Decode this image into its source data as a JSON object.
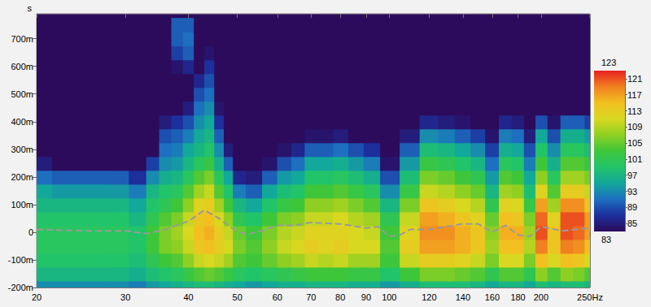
{
  "chart_data": {
    "type": "heatmap",
    "y_label": "s",
    "log": "x",
    "grid": true,
    "xlim": [
      20,
      250
    ],
    "xticks": [
      20,
      30,
      40,
      50,
      60,
      70,
      80,
      90,
      100,
      120,
      140,
      160,
      180,
      200,
      {
        "value": 250,
        "label": "250Hz"
      }
    ],
    "ylim": [
      -200,
      790
    ],
    "yticks": [
      {
        "value": -200,
        "label": "-200m"
      },
      {
        "value": -100,
        "label": "-100m"
      },
      0,
      {
        "value": 100,
        "label": "100m"
      },
      {
        "value": 200,
        "label": "200m"
      },
      {
        "value": 300,
        "label": "300m"
      },
      {
        "value": 400,
        "label": "400m"
      },
      {
        "value": 500,
        "label": "500m"
      },
      {
        "value": 600,
        "label": "600m"
      },
      {
        "value": 700,
        "label": "700m"
      }
    ],
    "colorbar": {
      "range": [
        83,
        123
      ],
      "ticks": [
        85,
        89,
        93,
        97,
        101,
        105,
        109,
        113,
        117,
        121
      ]
    },
    "x": [
      20,
      23,
      26,
      29,
      32,
      34,
      36,
      38,
      40,
      42,
      44,
      46,
      48,
      50,
      54,
      58,
      62,
      66,
      70,
      75,
      80,
      86,
      92,
      100,
      110,
      120,
      130,
      140,
      150,
      160,
      170,
      180,
      190,
      200,
      212,
      225,
      238,
      250
    ],
    "y": [
      -200,
      -150,
      -100,
      -50,
      0,
      50,
      100,
      150,
      200,
      250,
      300,
      350,
      400,
      450,
      500,
      550,
      600,
      650,
      700,
      750
    ],
    "cells": [
      [
        93,
        97,
        99,
        100,
        100,
        99,
        97,
        95,
        91,
        85,
        83,
        83,
        83,
        83,
        83,
        83,
        83,
        83,
        83,
        83
      ],
      [
        93,
        97,
        99,
        100,
        100,
        99,
        97,
        94,
        90,
        83,
        83,
        83,
        83,
        83,
        83,
        83,
        83,
        83,
        83,
        83
      ],
      [
        93,
        97,
        99,
        100,
        100,
        99,
        97,
        94,
        90,
        83,
        83,
        83,
        83,
        83,
        83,
        83,
        83,
        83,
        83,
        83
      ],
      [
        93,
        97,
        99,
        100,
        100,
        99,
        97,
        94,
        90,
        83,
        83,
        83,
        83,
        83,
        83,
        83,
        83,
        83,
        83,
        83
      ],
      [
        92,
        96,
        98,
        99,
        99,
        97,
        95,
        92,
        87,
        83,
        83,
        83,
        83,
        83,
        83,
        83,
        83,
        83,
        83,
        83
      ],
      [
        94,
        98,
        101,
        103,
        103,
        101,
        99,
        97,
        93,
        88,
        83,
        83,
        83,
        83,
        83,
        83,
        83,
        83,
        83,
        83
      ],
      [
        95,
        99,
        103,
        106,
        106,
        104,
        101,
        99,
        96,
        93,
        91,
        89,
        85,
        83,
        83,
        83,
        83,
        83,
        83,
        83
      ],
      [
        96,
        100,
        104,
        107,
        108,
        106,
        103,
        100,
        97,
        94,
        92,
        90,
        87,
        83,
        83,
        83,
        84,
        88,
        90,
        90
      ],
      [
        97,
        102,
        107,
        110,
        111,
        110,
        107,
        104,
        100,
        97,
        95,
        92,
        89,
        85,
        83,
        83,
        86,
        90,
        91,
        90
      ],
      [
        98,
        104,
        110,
        114,
        115,
        114,
        112,
        108,
        104,
        100,
        97,
        95,
        93,
        91,
        89,
        86,
        83,
        83,
        83,
        83
      ],
      [
        98,
        105,
        111,
        115,
        116,
        115,
        113,
        110,
        106,
        102,
        99,
        97,
        95,
        93,
        91,
        89,
        87,
        84,
        83,
        83
      ],
      [
        97,
        104,
        110,
        113,
        113,
        111,
        108,
        104,
        100,
        96,
        93,
        90,
        87,
        84,
        83,
        83,
        83,
        83,
        83,
        83
      ],
      [
        96,
        102,
        108,
        111,
        110,
        107,
        103,
        99,
        95,
        90,
        85,
        83,
        83,
        83,
        83,
        83,
        83,
        83,
        83,
        83
      ],
      [
        95,
        100,
        104,
        106,
        105,
        101,
        97,
        92,
        86,
        83,
        83,
        83,
        83,
        83,
        83,
        83,
        83,
        83,
        83,
        83
      ],
      [
        94,
        99,
        103,
        104,
        103,
        99,
        95,
        90,
        85,
        83,
        83,
        83,
        83,
        83,
        83,
        83,
        83,
        83,
        83,
        83
      ],
      [
        95,
        100,
        105,
        107,
        106,
        103,
        99,
        95,
        90,
        84,
        83,
        83,
        83,
        83,
        83,
        83,
        83,
        83,
        83,
        83
      ],
      [
        96,
        101,
        107,
        110,
        109,
        106,
        102,
        98,
        94,
        89,
        84,
        83,
        83,
        83,
        83,
        83,
        83,
        83,
        83,
        83
      ],
      [
        96,
        102,
        108,
        111,
        110,
        107,
        103,
        99,
        95,
        91,
        86,
        83,
        83,
        83,
        83,
        83,
        83,
        83,
        83,
        83
      ],
      [
        97,
        103,
        110,
        113,
        112,
        110,
        107,
        103,
        99,
        95,
        90,
        84,
        83,
        83,
        83,
        83,
        83,
        83,
        83,
        83
      ],
      [
        97,
        103,
        109,
        112,
        112,
        110,
        107,
        103,
        99,
        95,
        90,
        84,
        83,
        83,
        83,
        83,
        83,
        83,
        83,
        83
      ],
      [
        97,
        103,
        110,
        113,
        112,
        111,
        108,
        104,
        100,
        96,
        91,
        85,
        83,
        83,
        83,
        83,
        83,
        83,
        83,
        83
      ],
      [
        96,
        102,
        108,
        111,
        111,
        109,
        106,
        102,
        98,
        94,
        89,
        83,
        83,
        83,
        83,
        83,
        83,
        83,
        83,
        83
      ],
      [
        96,
        102,
        108,
        111,
        110,
        108,
        104,
        100,
        96,
        92,
        87,
        83,
        83,
        83,
        83,
        83,
        83,
        83,
        83,
        83
      ],
      [
        94,
        99,
        103,
        104,
        103,
        101,
        97,
        93,
        89,
        84,
        83,
        83,
        83,
        83,
        83,
        83,
        83,
        83,
        83,
        83
      ],
      [
        96,
        103,
        110,
        113,
        112,
        110,
        106,
        102,
        98,
        94,
        90,
        85,
        83,
        83,
        83,
        83,
        83,
        83,
        83,
        83
      ],
      [
        98,
        106,
        113,
        117,
        118,
        117,
        114,
        110,
        106,
        102,
        98,
        93,
        86,
        83,
        83,
        83,
        83,
        83,
        83,
        83
      ],
      [
        98,
        106,
        113,
        117,
        118,
        116,
        113,
        109,
        105,
        101,
        97,
        92,
        85,
        83,
        83,
        83,
        83,
        83,
        83,
        83
      ],
      [
        98,
        105,
        112,
        116,
        116,
        114,
        111,
        107,
        103,
        99,
        95,
        90,
        84,
        83,
        83,
        83,
        83,
        83,
        83,
        83
      ],
      [
        97,
        104,
        110,
        114,
        114,
        112,
        109,
        105,
        101,
        97,
        93,
        88,
        83,
        83,
        83,
        83,
        83,
        83,
        83,
        83
      ],
      [
        95,
        101,
        106,
        108,
        107,
        105,
        101,
        97,
        94,
        91,
        88,
        84,
        83,
        83,
        83,
        83,
        83,
        83,
        83,
        83
      ],
      [
        97,
        104,
        111,
        115,
        116,
        115,
        112,
        108,
        104,
        100,
        96,
        92,
        86,
        83,
        83,
        83,
        83,
        83,
        83,
        83
      ],
      [
        97,
        104,
        111,
        115,
        116,
        114,
        111,
        107,
        103,
        99,
        95,
        91,
        85,
        83,
        83,
        83,
        83,
        83,
        83,
        83
      ],
      [
        95,
        101,
        106,
        109,
        108,
        106,
        102,
        98,
        95,
        92,
        89,
        85,
        83,
        83,
        83,
        83,
        83,
        83,
        83,
        83
      ],
      [
        98,
        107,
        115,
        119,
        121,
        120,
        117,
        112,
        107,
        103,
        99,
        95,
        89,
        83,
        83,
        83,
        83,
        83,
        83,
        83
      ],
      [
        97,
        104,
        111,
        114,
        114,
        112,
        108,
        104,
        100,
        96,
        93,
        89,
        84,
        83,
        83,
        83,
        83,
        83,
        83,
        83
      ],
      [
        98,
        107,
        115,
        119,
        121,
        121,
        118,
        113,
        108,
        104,
        100,
        96,
        90,
        83,
        83,
        83,
        83,
        83,
        83,
        83
      ],
      [
        98,
        106,
        114,
        118,
        120,
        121,
        118,
        113,
        108,
        104,
        100,
        96,
        90,
        83,
        83,
        83,
        83,
        83,
        83,
        83
      ],
      [
        97,
        104,
        111,
        115,
        117,
        117,
        114,
        110,
        106,
        102,
        98,
        94,
        88,
        83,
        83,
        83,
        83,
        83,
        83,
        83
      ]
    ],
    "series": [
      {
        "type": "line",
        "color": "#9a9a9a",
        "line_style": "dashed",
        "x": [
          20,
          25,
          30,
          33,
          36,
          40,
          43,
          46,
          50,
          53,
          56,
          60,
          65,
          70,
          80,
          90,
          95,
          100,
          105,
          110,
          120,
          140,
          150,
          160,
          170,
          180,
          190,
          200,
          220,
          250
        ],
        "values": [
          10,
          5,
          5,
          -5,
          10,
          40,
          80,
          50,
          0,
          -5,
          5,
          25,
          25,
          35,
          30,
          15,
          20,
          -15,
          -10,
          10,
          10,
          30,
          30,
          0,
          25,
          -10,
          -15,
          20,
          5,
          15
        ]
      }
    ]
  }
}
